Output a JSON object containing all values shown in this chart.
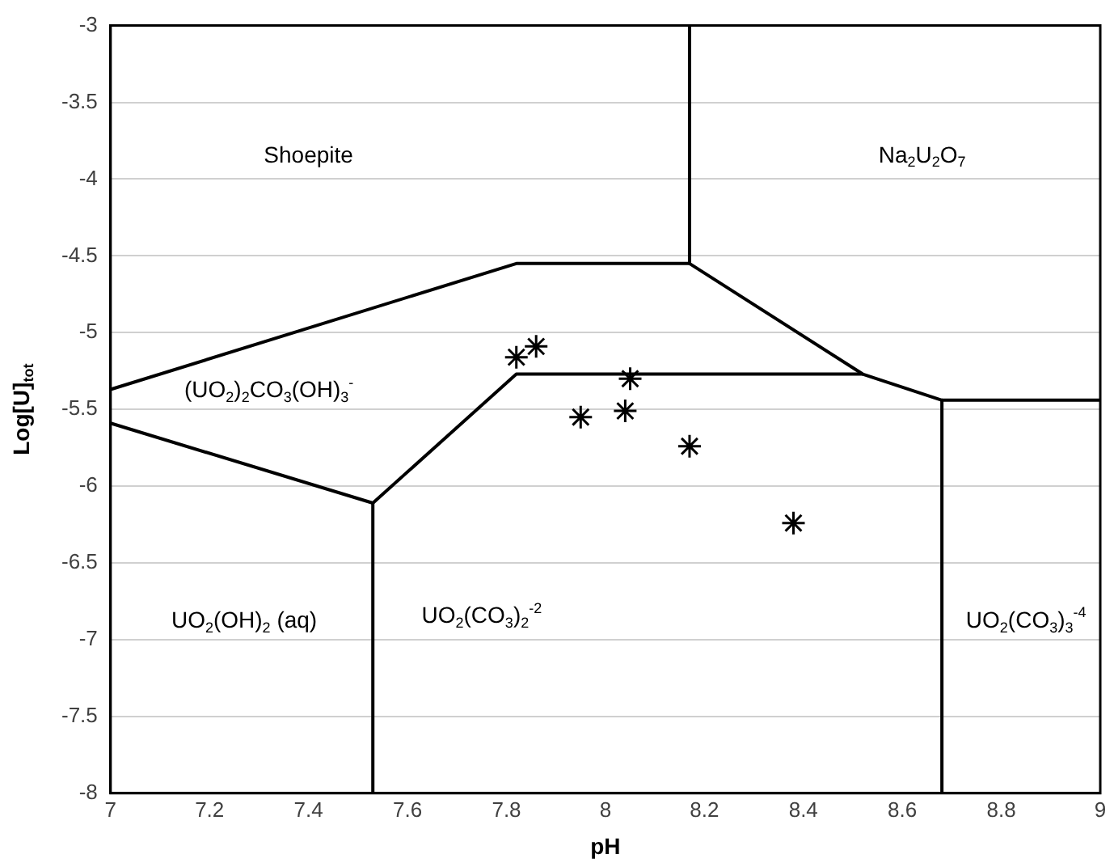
{
  "chart_data": {
    "type": "line",
    "xlabel": "pH",
    "ylabel": "Log[U]$_{tot}$",
    "xlim": [
      7,
      9
    ],
    "xticks": [
      7,
      7.2,
      7.4,
      7.6,
      7.8,
      8,
      8.2,
      8.4,
      8.6,
      8.8,
      9
    ],
    "ylim": [
      -8,
      -3
    ],
    "yticks": [
      -8,
      -7.5,
      -7,
      -6.5,
      -6,
      -5.5,
      -5,
      -4.5,
      -4,
      -3.5,
      -3
    ],
    "grid": "y",
    "legend": false,
    "series": [
      {
        "color": "#000000",
        "marker": "none",
        "x": [
          7,
          7.82,
          8.17,
          8.52,
          8.68,
          9
        ],
        "values": [
          -5.37,
          -4.55,
          -4.55,
          -5.27,
          -5.44,
          -5.44
        ]
      },
      {
        "color": "#000000",
        "marker": "none",
        "x": [
          8.17,
          8.17
        ],
        "values": [
          -3,
          -4.55
        ]
      },
      {
        "color": "#000000",
        "marker": "none",
        "x": [
          7,
          7.53,
          7.82,
          8.52
        ],
        "values": [
          -5.59,
          -6.11,
          -5.27,
          -5.27
        ]
      },
      {
        "color": "#000000",
        "marker": "none",
        "x": [
          7.53,
          7.53
        ],
        "values": [
          -6.11,
          -8
        ]
      },
      {
        "color": "#000000",
        "marker": "none",
        "x": [
          8.68,
          8.68
        ],
        "values": [
          -5.44,
          -8
        ]
      },
      {
        "type": "scatter",
        "color": "#000000",
        "marker": "cross",
        "x": [
          7.82,
          7.86,
          8.05,
          7.95,
          8.04,
          8.17,
          8.38
        ],
        "values": [
          -5.16,
          -5.09,
          -5.3,
          -5.55,
          -5.51,
          -5.74,
          -6.24
        ]
      }
    ],
    "annotations": [
      "Shoepite",
      "Na$_{2}$U$_{2}$O$_{7}$",
      "(UO$_{2}$)$_{2}$CO$_{3}$(OH)$_{3}$$^{-}$",
      "UO$_{2}$(OH)$_{2}$ (aq)",
      "UO$_{2}$(CO$_{3}$)$_{2}$$^{-2}$",
      "UO$_{2}$(CO$_{3}$)$_{3}$$^{-4}$"
    ]
  }
}
